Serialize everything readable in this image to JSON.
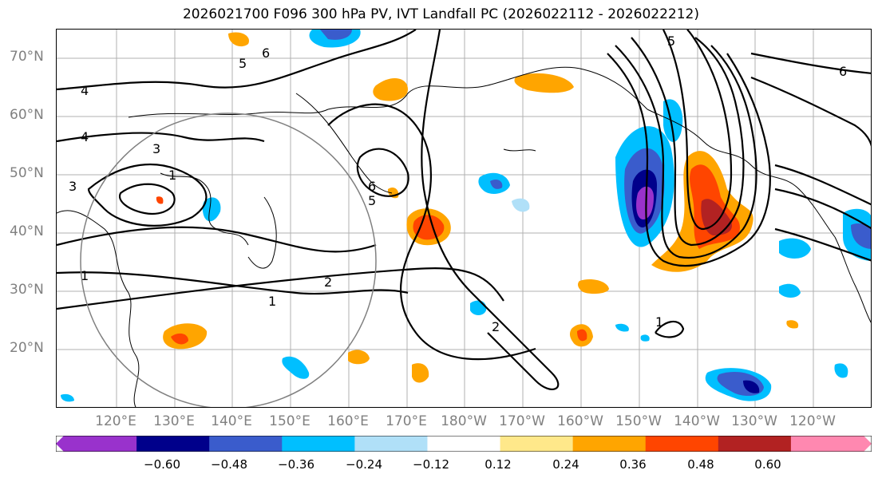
{
  "title": "2026021700 F096 300 hPa PV, IVT Landfall PC (2026022112 - 2026022212)",
  "lat_labels": [
    "70°N",
    "60°N",
    "50°N",
    "40°N",
    "30°N",
    "20°N"
  ],
  "lon_labels": [
    "120°E",
    "130°E",
    "140°E",
    "150°E",
    "160°E",
    "170°E",
    "180°W",
    "170°W",
    "160°W",
    "150°W",
    "140°W",
    "130°W",
    "120°W"
  ],
  "contour_labels": [
    "1",
    "2",
    "3",
    "4",
    "5",
    "6"
  ],
  "colorbar": {
    "ticks": [
      "−0.60",
      "−0.48",
      "−0.36",
      "−0.24",
      "−0.12",
      "0.12",
      "0.24",
      "0.36",
      "0.48",
      "0.60"
    ],
    "colors": [
      "#9932cc",
      "#00008b",
      "#3a5ccc",
      "#00bfff",
      "#b0e0f8",
      "#ffffff",
      "#ffe88a",
      "#ffa500",
      "#ff4500",
      "#b22222",
      "#ff88b0"
    ]
  }
}
